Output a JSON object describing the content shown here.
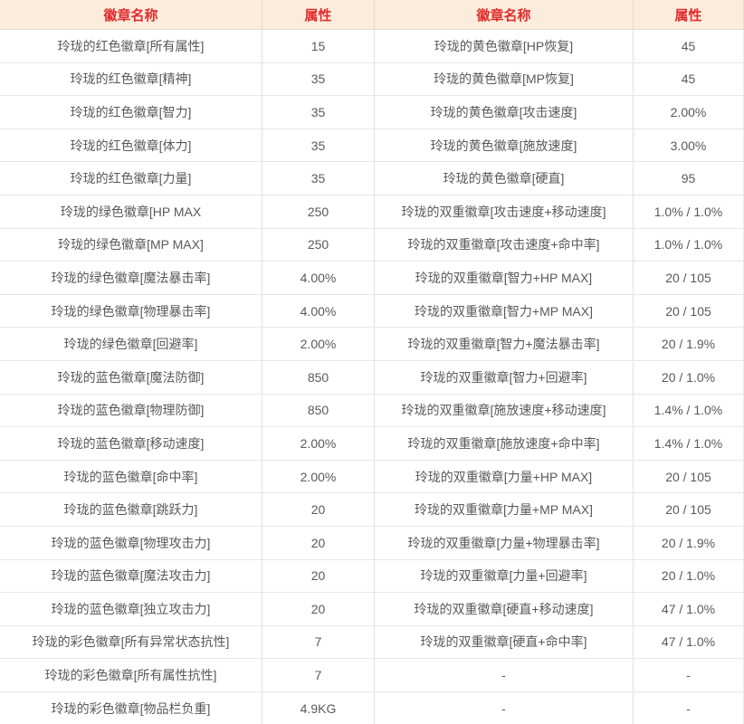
{
  "colors": {
    "header_background": "#fcecdc",
    "header_text": "#e02c2c",
    "cell_text": "#595959",
    "row_border": "#e6e6e6"
  },
  "table": {
    "headers": [
      {
        "label": "徽章名称"
      },
      {
        "label": "属性"
      },
      {
        "label": "徽章名称"
      },
      {
        "label": "属性"
      }
    ],
    "rows": [
      {
        "cells": [
          "玲珑的红色徽章[所有属性]",
          "15",
          "玲珑的黄色徽章[HP恢复]",
          "45"
        ]
      },
      {
        "cells": [
          "玲珑的红色徽章[精神]",
          "35",
          "玲珑的黄色徽章[MP恢复]",
          "45"
        ]
      },
      {
        "cells": [
          "玲珑的红色徽章[智力]",
          "35",
          "玲珑的黄色徽章[攻击速度]",
          "2.00%"
        ]
      },
      {
        "cells": [
          "玲珑的红色徽章[体力]",
          "35",
          "玲珑的黄色徽章[施放速度]",
          "3.00%"
        ]
      },
      {
        "cells": [
          "玲珑的红色徽章[力量]",
          "35",
          "玲珑的黄色徽章[硬直]",
          "95"
        ]
      },
      {
        "cells": [
          "玲珑的绿色徽章[HP MAX",
          "250",
          "玲珑的双重徽章[攻击速度+移动速度]",
          "1.0% / 1.0%"
        ]
      },
      {
        "cells": [
          "玲珑的绿色徽章[MP MAX]",
          "250",
          "玲珑的双重徽章[攻击速度+命中率]",
          "1.0% / 1.0%"
        ]
      },
      {
        "cells": [
          "玲珑的绿色徽章[魔法暴击率]",
          "4.00%",
          "玲珑的双重徽章[智力+HP MAX]",
          "20 / 105"
        ]
      },
      {
        "cells": [
          "玲珑的绿色徽章[物理暴击率]",
          "4.00%",
          "玲珑的双重徽章[智力+MP MAX]",
          "20 / 105"
        ]
      },
      {
        "cells": [
          "玲珑的绿色徽章[回避率]",
          "2.00%",
          "玲珑的双重徽章[智力+魔法暴击率]",
          "20 / 1.9%"
        ]
      },
      {
        "cells": [
          "玲珑的蓝色徽章[魔法防御]",
          "850",
          "玲珑的双重徽章[智力+回避率]",
          "20 / 1.0%"
        ]
      },
      {
        "cells": [
          "玲珑的蓝色徽章[物理防御]",
          "850",
          "玲珑的双重徽章[施放速度+移动速度]",
          "1.4% / 1.0%"
        ]
      },
      {
        "cells": [
          "玲珑的蓝色徽章[移动速度]",
          "2.00%",
          "玲珑的双重徽章[施放速度+命中率]",
          "1.4% / 1.0%"
        ]
      },
      {
        "cells": [
          "玲珑的蓝色徽章[命中率]",
          "2.00%",
          "玲珑的双重徽章[力量+HP MAX]",
          "20 / 105"
        ]
      },
      {
        "cells": [
          "玲珑的蓝色徽章[跳跃力]",
          "20",
          "玲珑的双重徽章[力量+MP MAX]",
          "20 / 105"
        ]
      },
      {
        "cells": [
          "玲珑的蓝色徽章[物理攻击力]",
          "20",
          "玲珑的双重徽章[力量+物理暴击率]",
          "20 / 1.9%"
        ]
      },
      {
        "cells": [
          "玲珑的蓝色徽章[魔法攻击力]",
          "20",
          "玲珑的双重徽章[力量+回避率]",
          "20 / 1.0%"
        ]
      },
      {
        "cells": [
          "玲珑的蓝色徽章[独立攻击力]",
          "20",
          "玲珑的双重徽章[硬直+移动速度]",
          "47 / 1.0%"
        ]
      },
      {
        "cells": [
          "玲珑的彩色徽章[所有异常状态抗性]",
          "7",
          "玲珑的双重徽章[硬直+命中率]",
          "47 / 1.0%"
        ]
      },
      {
        "cells": [
          "玲珑的彩色徽章[所有属性抗性]",
          "7",
          "-",
          "-"
        ]
      },
      {
        "cells": [
          "玲珑的彩色徽章[物品栏负重]",
          "4.9KG",
          "-",
          "-"
        ]
      }
    ]
  }
}
